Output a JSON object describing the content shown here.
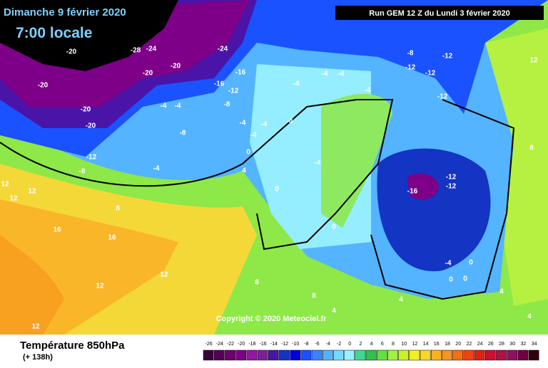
{
  "header": {
    "title": "Dimanche 9 février 2020",
    "time": "7:00 locale",
    "run": "Run GEM 12 Z du Lundi 3 février 2020"
  },
  "copyright": "Copyright © 2020 Meteociel.fr",
  "footer": {
    "field": "Température 850hPa",
    "lead": "(+ 138h)"
  },
  "map_labels": [
    -20,
    -28,
    -24,
    -24,
    -20,
    -20,
    -20,
    -20,
    -20,
    -16,
    -12,
    -16,
    -4,
    -4,
    -8,
    -8,
    -12,
    -8,
    -4,
    -4,
    -4,
    -4,
    -4,
    -4,
    -4,
    -4,
    -4,
    -8,
    -12,
    -12,
    -12,
    -12,
    -12,
    -12,
    -16,
    0,
    4,
    0,
    -4,
    0,
    -4,
    0,
    0,
    0,
    8,
    16,
    16,
    12,
    12,
    12,
    12,
    12,
    12,
    8,
    8,
    4,
    4,
    4,
    8,
    4,
    12
  ],
  "scale": {
    "values": [
      -26,
      -24,
      -22,
      -20,
      -18,
      -16,
      -14,
      -12,
      -10,
      -8,
      -6,
      -4,
      -2,
      0,
      2,
      4,
      6,
      8,
      10,
      12,
      14,
      16,
      18,
      20,
      22,
      24,
      26,
      28,
      30,
      32,
      34
    ],
    "colors": [
      "#3a003a",
      "#560058",
      "#6c006c",
      "#7e0088",
      "#9414a4",
      "#7a2294",
      "#4a14a8",
      "#1434c4",
      "#0000e0",
      "#1a52ff",
      "#3a82ff",
      "#52b2ff",
      "#74d8ff",
      "#96f2ff",
      "#40d890",
      "#30c050",
      "#62e040",
      "#a2f040",
      "#ccf024",
      "#f2f024",
      "#f8d820",
      "#f8b220",
      "#f89222",
      "#f86c12",
      "#f04212",
      "#e02010",
      "#c81030",
      "#b01048",
      "#901060",
      "#700040",
      "#300010"
    ]
  }
}
